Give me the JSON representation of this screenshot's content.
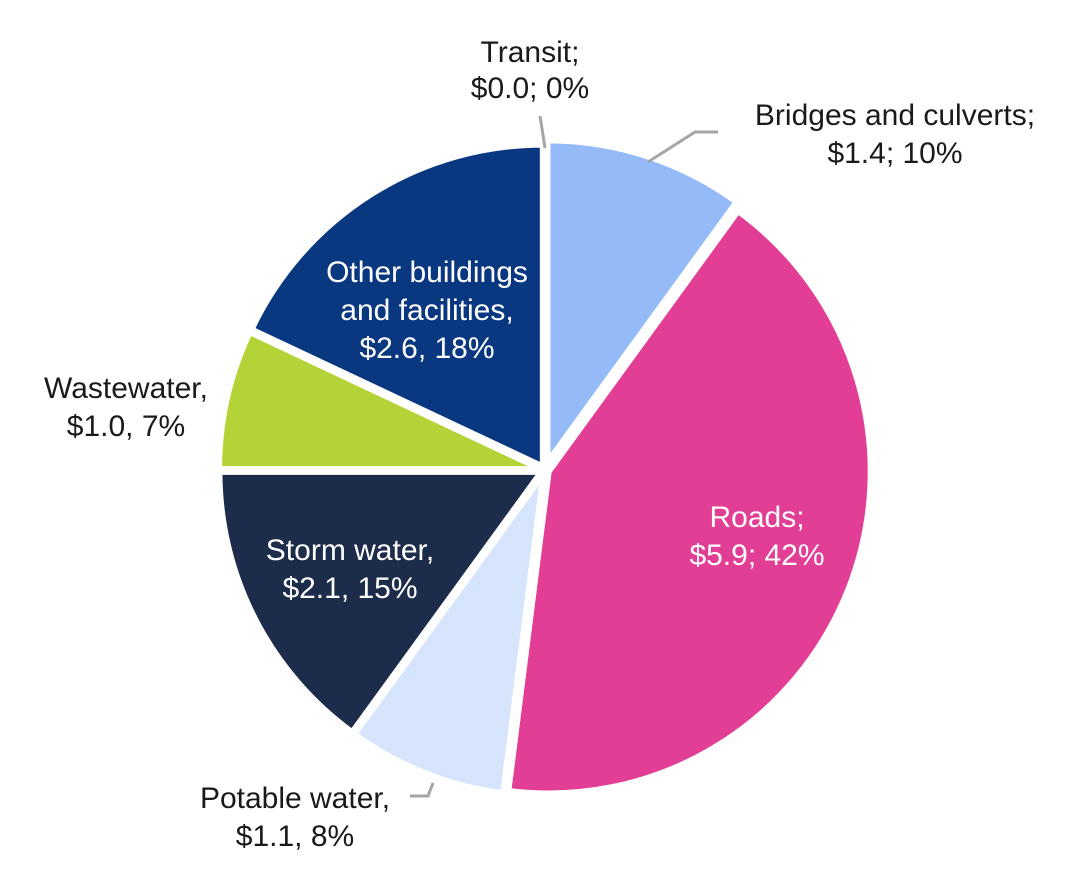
{
  "chart_data": {
    "type": "pie",
    "title": "",
    "colors": {
      "Transit": "#8db4f7",
      "Bridges and culverts": "#95baf8",
      "Roads": "#e33e95",
      "Potable water": "#d6e5fb",
      "Storm water": "#1e2c4b",
      "Wastewater": "#b3d337",
      "Other buildings and facilities": "#0a3880"
    },
    "slices": [
      {
        "name": "Transit",
        "value": 0.0,
        "percent": 0,
        "label_lines": [
          "Transit;",
          "$0.0; 0%"
        ]
      },
      {
        "name": "Bridges and culverts",
        "value": 1.4,
        "percent": 10,
        "label_lines": [
          "Bridges and culverts;",
          "$1.4; 10%"
        ]
      },
      {
        "name": "Roads",
        "value": 5.9,
        "percent": 42,
        "label_lines": [
          "Roads;",
          "$5.9; 42%"
        ]
      },
      {
        "name": "Potable water",
        "value": 1.1,
        "percent": 8,
        "label_lines": [
          "Potable water,",
          "$1.1, 8%"
        ]
      },
      {
        "name": "Storm water",
        "value": 2.1,
        "percent": 15,
        "label_lines": [
          "Storm water,",
          "$2.1, 15%"
        ]
      },
      {
        "name": "Wastewater",
        "value": 1.0,
        "percent": 7,
        "label_lines": [
          "Wastewater,",
          "$1.0, 7%"
        ]
      },
      {
        "name": "Other buildings and facilities",
        "value": 2.6,
        "percent": 18,
        "label_lines": [
          "Other buildings",
          "and facilities,",
          "$2.6, 18%"
        ]
      }
    ]
  }
}
